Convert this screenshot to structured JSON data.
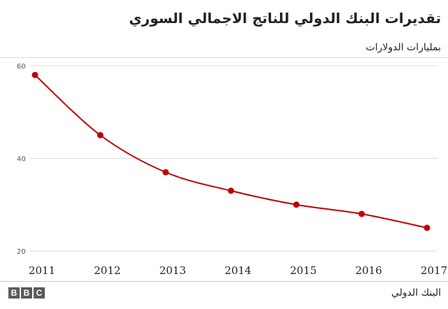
{
  "title": "تقديرات البنك الدولي للناتج الاجمالي السوري",
  "subtitle": "بمليارات الدولارات",
  "source": "البنك الدولي",
  "logo_text": "BBC",
  "colors": {
    "line": "#c00000",
    "grid": "#dddddd",
    "axis_text": "#222222"
  },
  "chart_data": {
    "type": "line",
    "title": "تقديرات البنك الدولي للناتج الاجمالي السوري",
    "ylabel": "بمليارات الدولارات",
    "xlabel": "",
    "x": [
      "2011",
      "2012",
      "2013",
      "2014",
      "2015",
      "2016",
      "2017"
    ],
    "series": [
      {
        "values": [
          58,
          45,
          37,
          33,
          30,
          28,
          25
        ]
      }
    ],
    "ylim": [
      20,
      60
    ],
    "yticks": [
      20,
      40,
      60
    ],
    "grid": true,
    "legend": "none"
  }
}
